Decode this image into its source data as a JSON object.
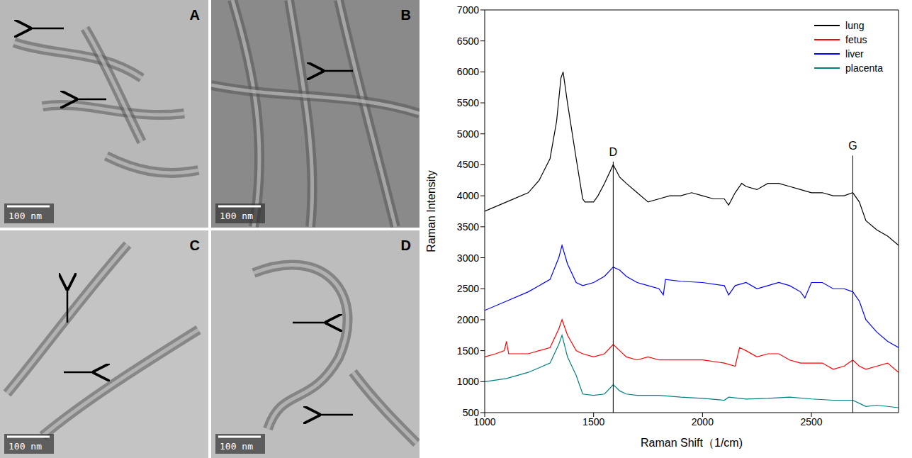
{
  "panels": [
    {
      "label": "A",
      "scale_bar": "100 nm"
    },
    {
      "label": "B",
      "scale_bar": "100 nm"
    },
    {
      "label": "C",
      "scale_bar": "100 nm"
    },
    {
      "label": "D",
      "scale_bar": "100 nm"
    }
  ],
  "chart_data": {
    "type": "line",
    "x_label": "Raman Shift（1/cm)",
    "y_label": "Raman Intensity",
    "xlim": [
      1000,
      2900
    ],
    "xticks": [
      1000,
      1500,
      2000,
      2500
    ],
    "ylim": [
      500,
      7000
    ],
    "yticks": [
      500,
      1000,
      1500,
      2000,
      2500,
      3000,
      3500,
      4000,
      4500,
      5000,
      5500,
      6000,
      6500,
      7000
    ],
    "grid": false,
    "legend": "upper right",
    "annotations": [
      {
        "text": "D",
        "x": 1590,
        "y": 4550
      },
      {
        "text": "G",
        "x": 2690,
        "y": 4650
      }
    ],
    "series": [
      {
        "name": "lung",
        "color": "#000000",
        "x": [
          1000,
          1100,
          1200,
          1250,
          1300,
          1330,
          1350,
          1360,
          1380,
          1420,
          1450,
          1460,
          1500,
          1520,
          1550,
          1590,
          1620,
          1650,
          1700,
          1750,
          1800,
          1850,
          1900,
          1950,
          2000,
          2050,
          2100,
          2120,
          2150,
          2180,
          2200,
          2250,
          2300,
          2350,
          2400,
          2450,
          2500,
          2550,
          2600,
          2650,
          2690,
          2720,
          2750,
          2800,
          2850,
          2900
        ],
        "values": [
          3750,
          3900,
          4050,
          4250,
          4600,
          5200,
          5900,
          6000,
          5500,
          4600,
          3950,
          3900,
          3900,
          4000,
          4200,
          4500,
          4300,
          4200,
          4050,
          3900,
          3950,
          4000,
          4000,
          4050,
          4000,
          3950,
          3950,
          3850,
          4050,
          4200,
          4150,
          4100,
          4200,
          4200,
          4150,
          4100,
          4050,
          4050,
          4000,
          4000,
          4050,
          3900,
          3600,
          3450,
          3350,
          3200
        ]
      },
      {
        "name": "fetus",
        "color": "#ff0000",
        "x": [
          1000,
          1050,
          1090,
          1100,
          1110,
          1200,
          1300,
          1340,
          1355,
          1380,
          1420,
          1450,
          1500,
          1550,
          1590,
          1620,
          1650,
          1700,
          1750,
          1800,
          1900,
          2000,
          2100,
          2150,
          2170,
          2200,
          2250,
          2300,
          2350,
          2400,
          2450,
          2500,
          2550,
          2600,
          2650,
          2690,
          2720,
          2750,
          2800,
          2850,
          2900
        ],
        "values": [
          1400,
          1450,
          1500,
          1650,
          1450,
          1450,
          1550,
          1850,
          2000,
          1750,
          1500,
          1450,
          1400,
          1450,
          1600,
          1500,
          1400,
          1350,
          1400,
          1350,
          1350,
          1350,
          1300,
          1250,
          1550,
          1500,
          1400,
          1450,
          1450,
          1350,
          1300,
          1300,
          1300,
          1200,
          1250,
          1350,
          1250,
          1200,
          1250,
          1300,
          1150
        ]
      },
      {
        "name": "liver",
        "color": "#0000ff",
        "x": [
          1000,
          1100,
          1200,
          1300,
          1340,
          1355,
          1380,
          1420,
          1450,
          1500,
          1550,
          1590,
          1620,
          1650,
          1700,
          1750,
          1800,
          1820,
          1830,
          1900,
          2000,
          2100,
          2120,
          2150,
          2200,
          2250,
          2300,
          2350,
          2400,
          2450,
          2470,
          2500,
          2550,
          2600,
          2650,
          2690,
          2720,
          2750,
          2800,
          2850,
          2900
        ],
        "values": [
          2150,
          2300,
          2450,
          2650,
          3000,
          3200,
          2900,
          2600,
          2550,
          2600,
          2700,
          2850,
          2800,
          2700,
          2600,
          2550,
          2500,
          2400,
          2650,
          2620,
          2600,
          2550,
          2400,
          2550,
          2600,
          2500,
          2550,
          2600,
          2550,
          2450,
          2350,
          2600,
          2600,
          2500,
          2500,
          2450,
          2300,
          2000,
          1800,
          1650,
          1550
        ]
      },
      {
        "name": "placenta",
        "color": "#008080",
        "x": [
          1000,
          1100,
          1200,
          1300,
          1340,
          1355,
          1380,
          1420,
          1450,
          1500,
          1550,
          1590,
          1620,
          1650,
          1700,
          1800,
          1900,
          2000,
          2100,
          2120,
          2200,
          2300,
          2400,
          2500,
          2600,
          2690,
          2720,
          2750,
          2800,
          2850,
          2900
        ],
        "values": [
          1000,
          1050,
          1150,
          1300,
          1600,
          1750,
          1400,
          1100,
          800,
          780,
          800,
          950,
          850,
          800,
          780,
          780,
          750,
          730,
          700,
          750,
          720,
          730,
          750,
          720,
          700,
          700,
          650,
          600,
          620,
          600,
          580
        ]
      }
    ]
  }
}
